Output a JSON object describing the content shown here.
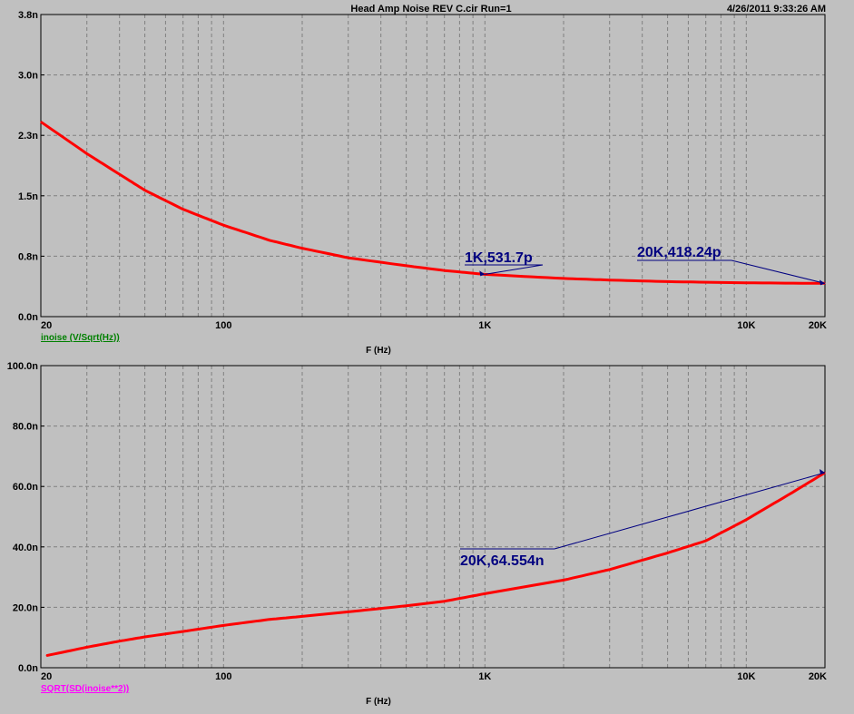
{
  "header": {
    "title": "Head Amp Noise REV C.cir Run=1",
    "timestamp": "4/26/2011 9:33:26 AM"
  },
  "colors": {
    "background": "#c0c0c0",
    "plot_frame": "#000000",
    "grid": "#808080",
    "trace": "#ff0000",
    "annotation": "#000080",
    "trace_label_top": "#008000",
    "trace_label_bottom": "#ff00ff"
  },
  "chart_data": [
    {
      "type": "line",
      "title": "",
      "xscale": "log",
      "xlim": [
        20,
        20000
      ],
      "ylim": [
        0,
        3.8e-09
      ],
      "xlabel": "F (Hz)",
      "ylabel": "",
      "trace_label": "inoise (V/Sqrt(Hz))",
      "grid": true,
      "xtick_labels": [
        {
          "value": 20,
          "label": "20"
        },
        {
          "value": 100,
          "label": "100"
        },
        {
          "value": 1000,
          "label": "1K"
        },
        {
          "value": 10000,
          "label": "10K"
        },
        {
          "value": 20000,
          "label": "20K"
        }
      ],
      "ytick_labels": [
        {
          "value": 3.8e-09,
          "label": "3.8n"
        },
        {
          "value": 3.04e-09,
          "label": "3.0n"
        },
        {
          "value": 2.28e-09,
          "label": "2.3n"
        },
        {
          "value": 1.52e-09,
          "label": "1.5n"
        },
        {
          "value": 7.6e-10,
          "label": "0.8n"
        },
        {
          "value": 0,
          "label": "0.0n"
        }
      ],
      "series": [
        {
          "x": [
            20,
            30,
            40,
            50,
            70,
            100,
            150,
            200,
            300,
            500,
            700,
            1000,
            2000,
            3000,
            5000,
            10000,
            20000
          ],
          "y": [
            2.45e-09,
            2.05e-09,
            1.79e-09,
            1.59e-09,
            1.35e-09,
            1.15e-09,
            9.6e-10,
            8.6e-10,
            7.4e-10,
            6.4e-10,
            5.8e-10,
            5.317e-10,
            4.8e-10,
            4.6e-10,
            4.4e-10,
            4.25e-10,
            4.1824e-10
          ]
        }
      ],
      "annotations": [
        {
          "text": "1K,531.7p",
          "x": 1000,
          "y": 5.317e-10
        },
        {
          "text": "20K,418.24p",
          "x": 20000,
          "y": 4.1824e-10
        }
      ]
    },
    {
      "type": "line",
      "title": "",
      "xscale": "log",
      "xlim": [
        20,
        20000
      ],
      "ylim": [
        0,
        1e-07
      ],
      "xlabel": "F (Hz)",
      "ylabel": "",
      "trace_label": "SQRT(SD(inoise**2))",
      "grid": true,
      "xtick_labels": [
        {
          "value": 20,
          "label": "20"
        },
        {
          "value": 100,
          "label": "100"
        },
        {
          "value": 1000,
          "label": "1K"
        },
        {
          "value": 10000,
          "label": "10K"
        },
        {
          "value": 20000,
          "label": "20K"
        }
      ],
      "ytick_labels": [
        {
          "value": 1e-07,
          "label": "100.0n"
        },
        {
          "value": 8e-08,
          "label": "80.0n"
        },
        {
          "value": 6e-08,
          "label": "60.0n"
        },
        {
          "value": 4e-08,
          "label": "40.0n"
        },
        {
          "value": 2e-08,
          "label": "20.0n"
        },
        {
          "value": 0,
          "label": "0.0n"
        }
      ],
      "series": [
        {
          "x": [
            21,
            30,
            40,
            50,
            70,
            100,
            150,
            200,
            300,
            500,
            700,
            1000,
            2000,
            3000,
            5000,
            7000,
            10000,
            15000,
            20000
          ],
          "y": [
            4e-09,
            6.8e-09,
            8.8e-09,
            1.02e-08,
            1.2e-08,
            1.4e-08,
            1.6e-08,
            1.7e-08,
            1.85e-08,
            2.05e-08,
            2.2e-08,
            2.45e-08,
            2.9e-08,
            3.25e-08,
            3.8e-08,
            4.2e-08,
            4.9e-08,
            5.8e-08,
            6.4554e-08
          ]
        }
      ],
      "annotations": [
        {
          "text": "20K,64.554n",
          "x": 20000,
          "y": 6.4554e-08
        }
      ]
    }
  ]
}
